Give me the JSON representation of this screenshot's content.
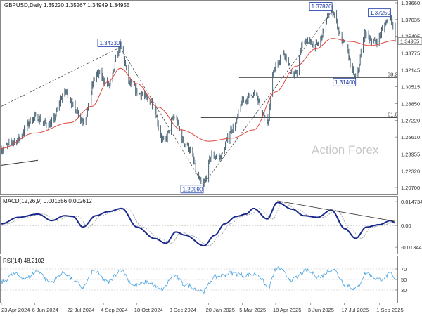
{
  "colors": {
    "candle": "#4a6475",
    "ma": "#e0443c",
    "macd": "#1a2a8c",
    "signal": "#a9a9a9",
    "rsi": "#4aa3e0",
    "label_border": "#1a3aa8",
    "label_text": "#1a3aa8",
    "grid_dashed": "#bbbbbb",
    "trendline": "#333333"
  },
  "chart_data": [
    {
      "type": "candlestick",
      "title": "GBPUSD,Daily  1.35220 1.35267 1.34949 1.34955",
      "symbol": "GBPUSD",
      "timeframe": "Daily",
      "ohlc_last": {
        "open": 1.3522,
        "high": 1.35267,
        "low": 1.34949,
        "close": 1.34955
      },
      "current_price_label": "1.34955",
      "y_ticks": [
        "1.38660",
        "1.37035",
        "1.35405",
        "1.33775",
        "1.32145",
        "1.30515",
        "1.28850",
        "1.27220",
        "1.25610",
        "1.23955",
        "1.22320",
        "1.20700"
      ],
      "ylim": [
        1.2036,
        1.3866
      ],
      "x_ticks": [
        "23 Apr 2024",
        "6 Jun 2024",
        "22 Jul 2024",
        "4 Sep 2024",
        "18 Oct 2024",
        "3 Dec 2024",
        "20 Jan 2025",
        "5 Mar 2025",
        "18 Apr 2025",
        "3 Jun 2025",
        "17 Jul 2025",
        "1 Sep 2025"
      ],
      "watermark": "Action Forex",
      "close_path": [
        [
          "2024-04-23",
          1.244
        ],
        [
          "2024-05-10",
          1.252
        ],
        [
          "2024-06-06",
          1.275
        ],
        [
          "2024-06-25",
          1.268
        ],
        [
          "2024-07-17",
          1.3
        ],
        [
          "2024-07-30",
          1.282
        ],
        [
          "2024-08-08",
          1.272
        ],
        [
          "2024-08-27",
          1.318
        ],
        [
          "2024-09-11",
          1.307
        ],
        [
          "2024-09-26",
          1.3433
        ],
        [
          "2024-10-10",
          1.307
        ],
        [
          "2024-10-22",
          1.298
        ],
        [
          "2024-11-06",
          1.29
        ],
        [
          "2024-11-22",
          1.252
        ],
        [
          "2024-12-06",
          1.275
        ],
        [
          "2024-12-20",
          1.25
        ],
        [
          "2025-01-13",
          1.2099
        ],
        [
          "2025-01-24",
          1.238
        ],
        [
          "2025-02-03",
          1.236
        ],
        [
          "2025-02-21",
          1.265
        ],
        [
          "2025-03-07",
          1.292
        ],
        [
          "2025-03-20",
          1.298
        ],
        [
          "2025-04-07",
          1.272
        ],
        [
          "2025-04-16",
          1.323
        ],
        [
          "2025-04-28",
          1.338
        ],
        [
          "2025-05-12",
          1.315
        ],
        [
          "2025-05-26",
          1.35
        ],
        [
          "2025-06-10",
          1.345
        ],
        [
          "2025-07-01",
          1.3787
        ],
        [
          "2025-07-16",
          1.348
        ],
        [
          "2025-08-01",
          1.314
        ],
        [
          "2025-08-14",
          1.356
        ],
        [
          "2025-08-25",
          1.348
        ],
        [
          "2025-09-16",
          1.3725
        ],
        [
          "2025-09-22",
          1.34955
        ]
      ],
      "ma_path": [
        [
          "2024-04-23",
          1.245
        ],
        [
          "2024-06-06",
          1.26
        ],
        [
          "2024-07-22",
          1.27
        ],
        [
          "2024-08-20",
          1.286
        ],
        [
          "2024-09-10",
          1.31
        ],
        [
          "2024-09-26",
          1.323
        ],
        [
          "2024-10-18",
          1.308
        ],
        [
          "2024-11-15",
          1.285
        ],
        [
          "2024-12-15",
          1.263
        ],
        [
          "2025-01-20",
          1.252
        ],
        [
          "2025-02-20",
          1.255
        ],
        [
          "2025-03-20",
          1.263
        ],
        [
          "2025-04-18",
          1.3
        ],
        [
          "2025-05-15",
          1.325
        ],
        [
          "2025-06-10",
          1.342
        ],
        [
          "2025-07-01",
          1.352
        ],
        [
          "2025-07-25",
          1.349
        ],
        [
          "2025-08-20",
          1.345
        ],
        [
          "2025-09-22",
          1.35
        ]
      ],
      "annotations": [
        {
          "label": "1.34330",
          "date": "2024-09-26",
          "price": 1.3433,
          "position": "top"
        },
        {
          "label": "1.20990",
          "date": "2025-01-13",
          "price": 1.2099,
          "position": "bottom"
        },
        {
          "label": "1.37870",
          "date": "2025-07-01",
          "price": 1.3787,
          "position": "top"
        },
        {
          "label": "1.37250",
          "date": "2025-09-16",
          "price": 1.3725,
          "position": "top"
        },
        {
          "label": "1.31400",
          "date": "2025-08-01",
          "price": 1.314,
          "position": "bottom"
        }
      ],
      "fib_levels": [
        {
          "label": "38.2",
          "price": 1.314,
          "from": "2025-03-01",
          "to": "2025-10-01"
        },
        {
          "label": "61.8",
          "price": 1.275,
          "from": "2025-01-10",
          "to": "2025-10-01"
        }
      ],
      "horizontal_line": {
        "price": 1.34955
      },
      "trendlines": [
        {
          "from": [
            "2024-04-23",
            1.2286
          ],
          "to": [
            "2024-06-10",
            1.2335
          ],
          "style": "solid"
        },
        {
          "from": [
            "2024-04-23",
            1.286
          ],
          "to": [
            "2024-09-26",
            1.3433
          ],
          "style": "dashed"
        },
        {
          "from": [
            "2024-09-26",
            1.3433
          ],
          "to": [
            "2025-01-13",
            1.2099
          ],
          "style": "dashed"
        },
        {
          "from": [
            "2025-01-13",
            1.2099
          ],
          "to": [
            "2025-07-01",
            1.3787
          ],
          "style": "dashed"
        }
      ]
    },
    {
      "type": "line",
      "title": "MACD(12,26,9) 0.001356 0.002612",
      "y_ticks": [
        "0.014734",
        "0.00",
        "-0.013442"
      ],
      "ylim": [
        -0.016,
        0.0165
      ],
      "series_path": [
        [
          "2024-04-23",
          0.001
        ],
        [
          "2024-05-15",
          0.005
        ],
        [
          "2024-06-10",
          0.007
        ],
        [
          "2024-06-28",
          0.003
        ],
        [
          "2024-07-15",
          0.006
        ],
        [
          "2024-07-26",
          0.0055
        ],
        [
          "2024-08-08",
          -0.001
        ],
        [
          "2024-08-25",
          0.006
        ],
        [
          "2024-09-10",
          0.0085
        ],
        [
          "2024-09-28",
          0.0105
        ],
        [
          "2024-10-18",
          -0.001
        ],
        [
          "2024-11-10",
          -0.008
        ],
        [
          "2024-11-25",
          -0.011
        ],
        [
          "2024-12-08",
          -0.004
        ],
        [
          "2024-12-20",
          -0.006
        ],
        [
          "2025-01-14",
          -0.0125
        ],
        [
          "2025-01-28",
          -0.006
        ],
        [
          "2025-02-10",
          0.001
        ],
        [
          "2025-02-25",
          0.0055
        ],
        [
          "2025-03-10",
          0.007
        ],
        [
          "2025-03-20",
          0.0105
        ],
        [
          "2025-04-07",
          0.004
        ],
        [
          "2025-04-20",
          0.0142
        ],
        [
          "2025-05-10",
          0.01
        ],
        [
          "2025-05-25",
          0.006
        ],
        [
          "2025-06-12",
          0.005
        ],
        [
          "2025-06-30",
          0.0095
        ],
        [
          "2025-07-18",
          -0.002
        ],
        [
          "2025-08-01",
          -0.008
        ],
        [
          "2025-08-15",
          -0.001
        ],
        [
          "2025-09-01",
          0.0005
        ],
        [
          "2025-09-16",
          0.003
        ],
        [
          "2025-09-22",
          0.0014
        ]
      ],
      "trendline": {
        "from": [
          "2025-04-20",
          0.0152
        ],
        "to": [
          "2025-09-22",
          0.0025
        ]
      }
    },
    {
      "type": "line",
      "title": "RSI(14) 48.2102",
      "y_ticks": [
        "70",
        "50",
        "30"
      ],
      "ylim": [
        10,
        90
      ],
      "levels": [
        70,
        50,
        30
      ],
      "series_path": [
        [
          "2024-04-23",
          45
        ],
        [
          "2024-05-10",
          60
        ],
        [
          "2024-05-25",
          52
        ],
        [
          "2024-06-10",
          66
        ],
        [
          "2024-06-25",
          45
        ],
        [
          "2024-07-15",
          62
        ],
        [
          "2024-07-30",
          44
        ],
        [
          "2024-08-08",
          35
        ],
        [
          "2024-08-22",
          66
        ],
        [
          "2024-09-10",
          45
        ],
        [
          "2024-09-26",
          68
        ],
        [
          "2024-10-15",
          38
        ],
        [
          "2024-11-01",
          45
        ],
        [
          "2024-11-20",
          30
        ],
        [
          "2024-12-05",
          58
        ],
        [
          "2024-12-20",
          40
        ],
        [
          "2025-01-13",
          28
        ],
        [
          "2025-01-28",
          55
        ],
        [
          "2025-02-20",
          62
        ],
        [
          "2025-03-10",
          58
        ],
        [
          "2025-03-25",
          60
        ],
        [
          "2025-04-08",
          35
        ],
        [
          "2025-04-20",
          72
        ],
        [
          "2025-05-10",
          50
        ],
        [
          "2025-05-28",
          66
        ],
        [
          "2025-06-15",
          55
        ],
        [
          "2025-07-01",
          70
        ],
        [
          "2025-07-20",
          40
        ],
        [
          "2025-08-01",
          32
        ],
        [
          "2025-08-15",
          62
        ],
        [
          "2025-09-01",
          50
        ],
        [
          "2025-09-16",
          60
        ],
        [
          "2025-09-22",
          48
        ]
      ]
    }
  ]
}
